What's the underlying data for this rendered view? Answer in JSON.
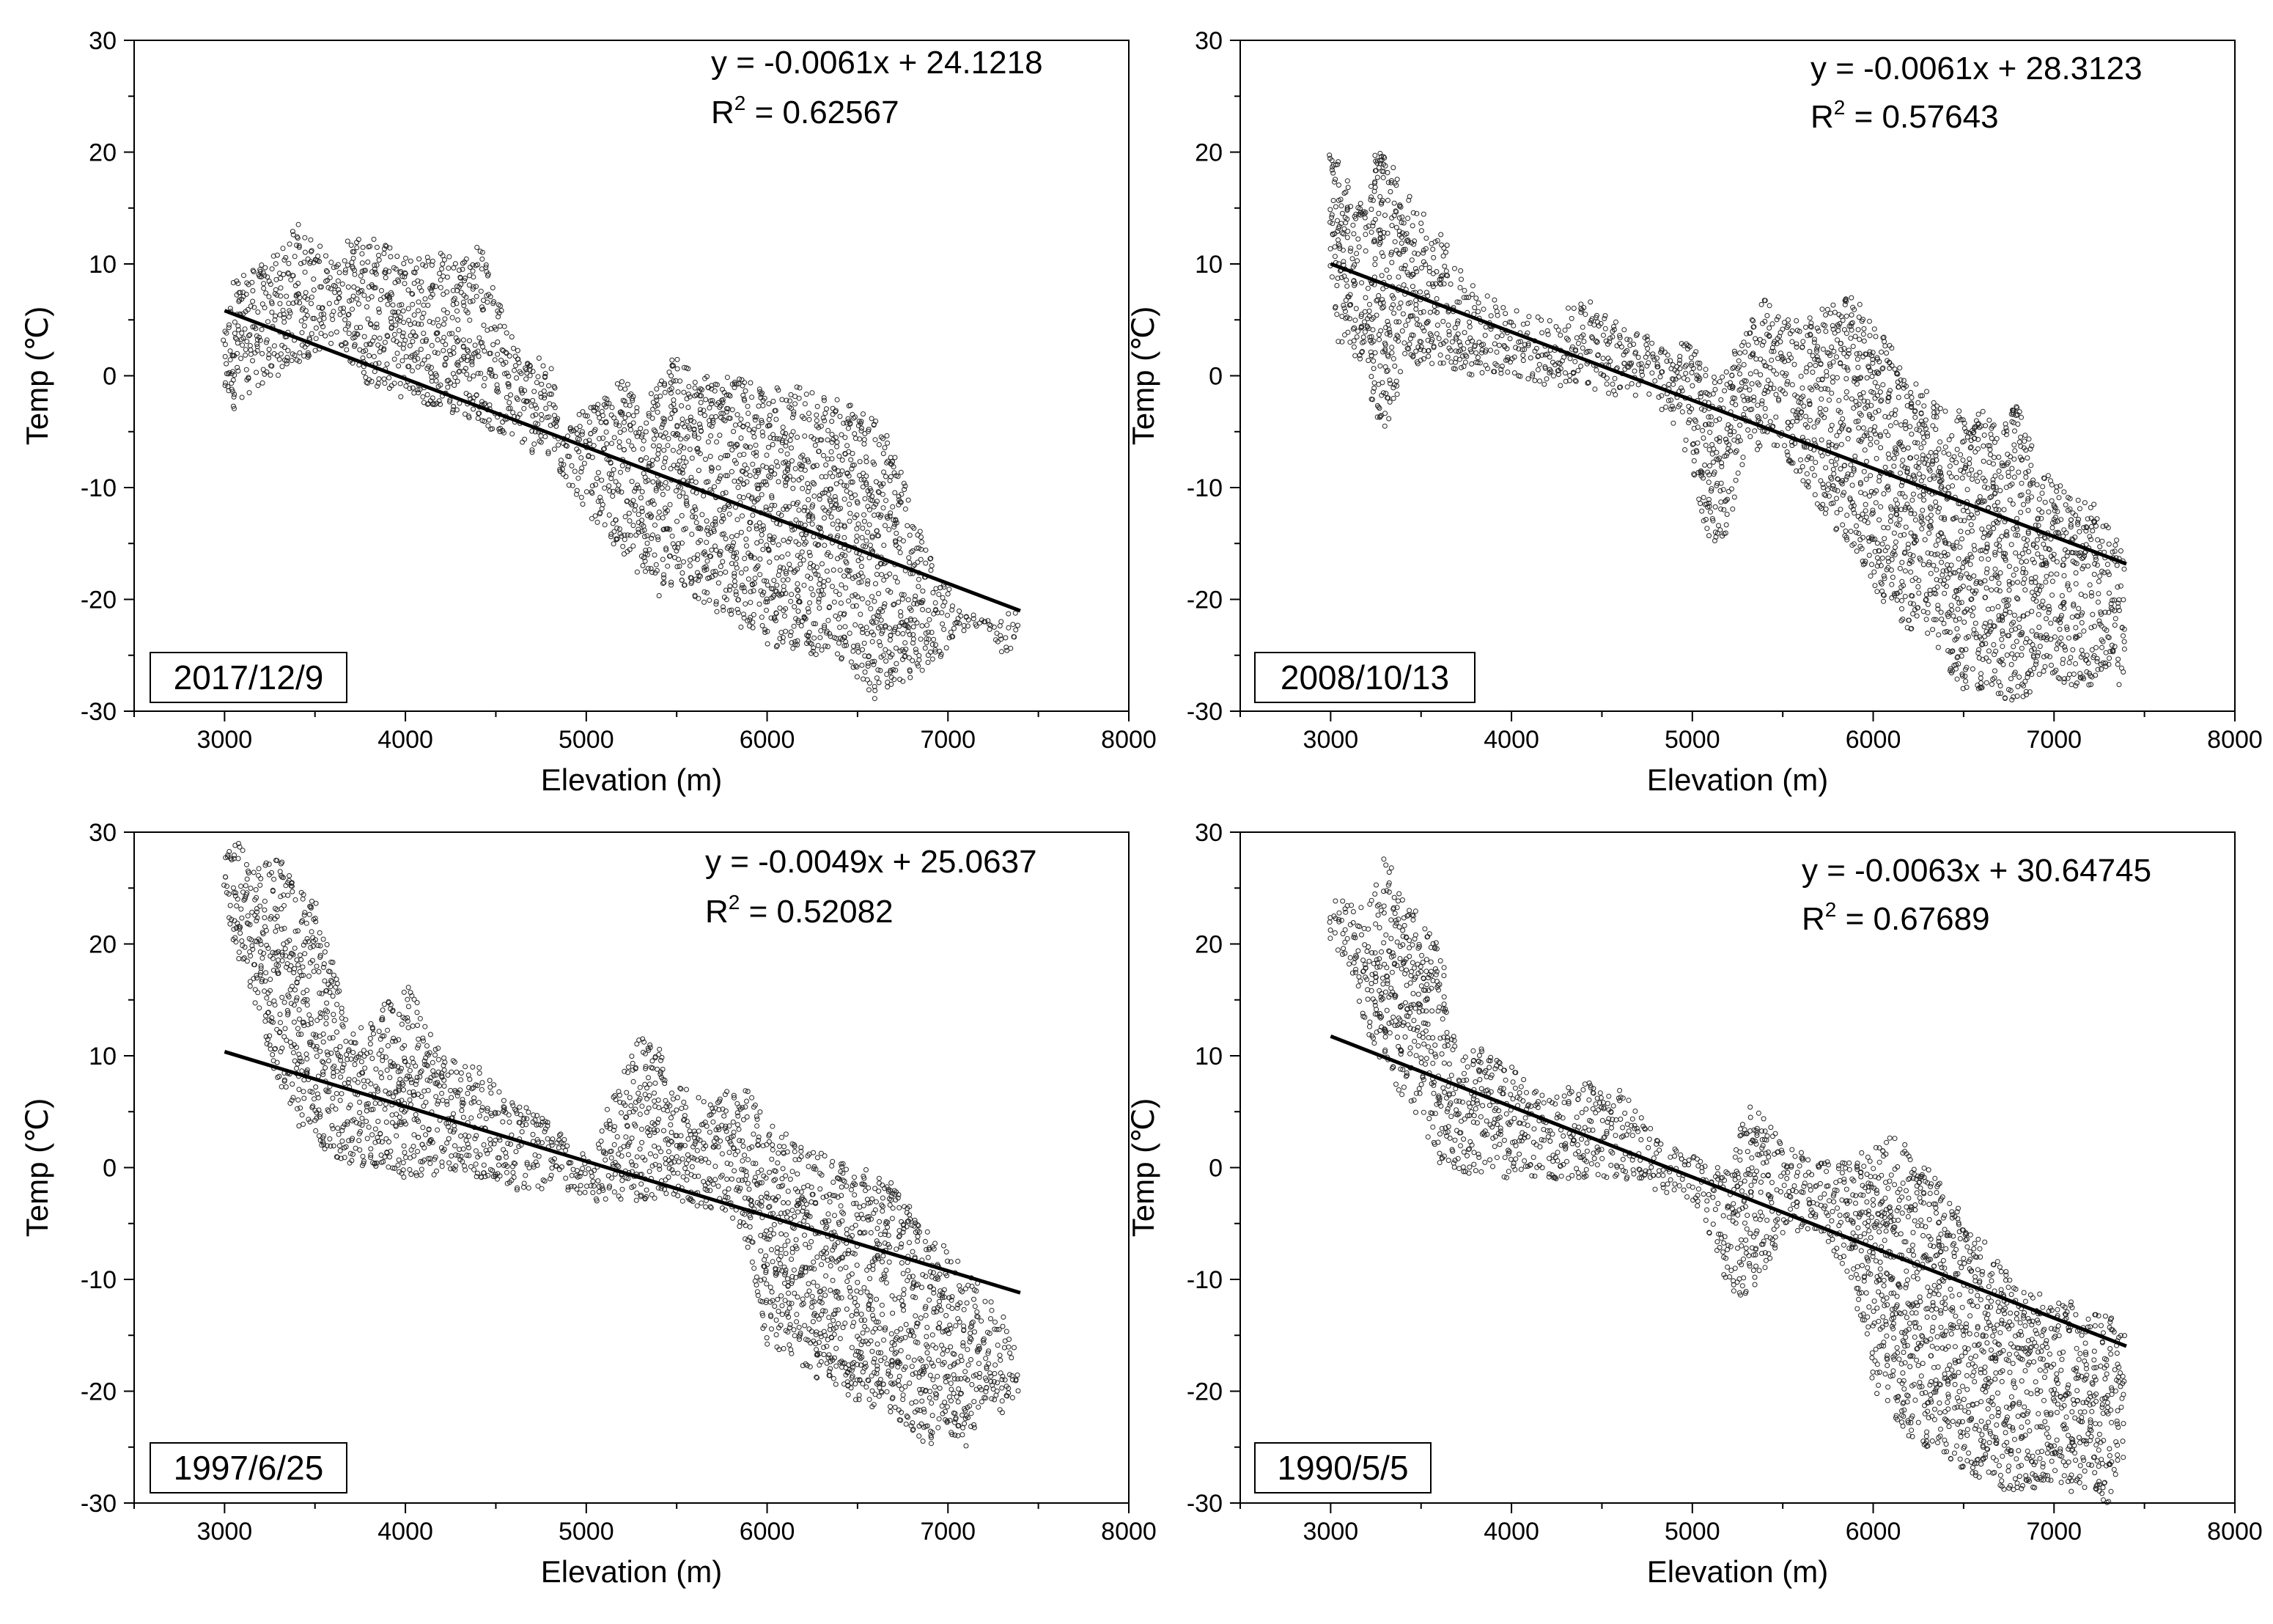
{
  "chart_data": [
    {
      "type": "scatter",
      "date": "2017/12/9",
      "xlabel": "Elevation (m)",
      "ylabel": "Temp (℃)",
      "xlim": [
        2500,
        8000
      ],
      "ylim": [
        -30,
        30
      ],
      "xticks": [
        3000,
        4000,
        5000,
        6000,
        7000,
        8000
      ],
      "yticks": [
        -30,
        -20,
        -10,
        0,
        10,
        20,
        30
      ],
      "equation": "y = -0.0061x + 24.1218",
      "r2_label": "R",
      "r2_exp": "2",
      "r2_value": " = 0.62567",
      "fit": {
        "slope": -0.0061,
        "intercept": 24.1218,
        "x_range": [
          3000,
          7400
        ]
      },
      "cloud": [
        [
          3000,
          -3,
          4
        ],
        [
          3050,
          -3,
          9
        ],
        [
          3100,
          -2,
          9
        ],
        [
          3200,
          -1,
          10
        ],
        [
          3300,
          0,
          11
        ],
        [
          3400,
          1,
          14
        ],
        [
          3500,
          2,
          12
        ],
        [
          3600,
          3,
          10
        ],
        [
          3700,
          1,
          13
        ],
        [
          3800,
          -1,
          13
        ],
        [
          4000,
          -2,
          11
        ],
        [
          4200,
          -3,
          11
        ],
        [
          4400,
          -4,
          12
        ],
        [
          4500,
          -5,
          8
        ],
        [
          4600,
          -6,
          3
        ],
        [
          4800,
          -8,
          1
        ],
        [
          4900,
          -10,
          -4
        ],
        [
          5000,
          -12,
          -3
        ],
        [
          5100,
          -14,
          -2
        ],
        [
          5200,
          -16,
          0
        ],
        [
          5300,
          -18,
          -3
        ],
        [
          5400,
          -20,
          0
        ],
        [
          5500,
          -18,
          2
        ],
        [
          5600,
          -20,
          0
        ],
        [
          5800,
          -22,
          0
        ],
        [
          6000,
          -24,
          -1
        ],
        [
          6200,
          -25,
          -1
        ],
        [
          6400,
          -25,
          -2
        ],
        [
          6500,
          -27,
          -3
        ],
        [
          6600,
          -29,
          -4
        ],
        [
          6700,
          -28,
          -6
        ],
        [
          6800,
          -27,
          -12
        ],
        [
          6900,
          -26,
          -16
        ],
        [
          7000,
          -25,
          -19
        ],
        [
          7100,
          -23,
          -21
        ],
        [
          7200,
          -22,
          -22
        ],
        [
          7300,
          -25,
          -21
        ],
        [
          7400,
          -24,
          -21
        ]
      ]
    },
    {
      "type": "scatter",
      "date": "2008/10/13",
      "xlabel": "Elevation (m)",
      "ylabel": "Temp (℃)",
      "xlim": [
        2500,
        8000
      ],
      "ylim": [
        -30,
        30
      ],
      "xticks": [
        3000,
        4000,
        5000,
        6000,
        7000,
        8000
      ],
      "yticks": [
        -30,
        -20,
        -10,
        0,
        10,
        20,
        30
      ],
      "equation": "y = -0.0061x + 28.3123",
      "r2_label": "R",
      "r2_exp": "2",
      "r2_value": " = 0.57643",
      "fit": {
        "slope": -0.0061,
        "intercept": 28.3123,
        "x_range": [
          3000,
          7400
        ]
      },
      "cloud": [
        [
          3000,
          8,
          20
        ],
        [
          3050,
          3,
          19
        ],
        [
          3100,
          2,
          17
        ],
        [
          3200,
          1,
          15
        ],
        [
          3250,
          -4,
          20
        ],
        [
          3300,
          -5,
          20
        ],
        [
          3400,
          0,
          17
        ],
        [
          3500,
          1,
          15
        ],
        [
          3600,
          1,
          13
        ],
        [
          3700,
          0,
          10
        ],
        [
          3800,
          0,
          8
        ],
        [
          4000,
          0,
          6
        ],
        [
          4200,
          -1,
          5
        ],
        [
          4400,
          -1,
          7
        ],
        [
          4600,
          -2,
          5
        ],
        [
          4800,
          -2,
          3
        ],
        [
          5000,
          -8,
          3
        ],
        [
          5050,
          -13,
          1
        ],
        [
          5100,
          -15,
          0
        ],
        [
          5200,
          -14,
          1
        ],
        [
          5300,
          -8,
          4
        ],
        [
          5400,
          -6,
          7
        ],
        [
          5500,
          -7,
          5
        ],
        [
          5600,
          -9,
          5
        ],
        [
          5700,
          -12,
          6
        ],
        [
          5800,
          -14,
          7
        ],
        [
          5900,
          -16,
          7
        ],
        [
          6000,
          -19,
          5
        ],
        [
          6100,
          -21,
          3
        ],
        [
          6200,
          -23,
          1
        ],
        [
          6300,
          -24,
          -1
        ],
        [
          6400,
          -26,
          -3
        ],
        [
          6500,
          -28,
          -3
        ],
        [
          6600,
          -28,
          -3
        ],
        [
          6700,
          -29,
          -4
        ],
        [
          6800,
          -29,
          -2
        ],
        [
          6900,
          -28,
          -7
        ],
        [
          7000,
          -27,
          -9
        ],
        [
          7100,
          -28,
          -10
        ],
        [
          7200,
          -28,
          -11
        ],
        [
          7300,
          -26,
          -13
        ],
        [
          7400,
          -29,
          -17
        ]
      ]
    },
    {
      "type": "scatter",
      "date": "1997/6/25",
      "xlabel": "Elevation (m)",
      "ylabel": "Temp (℃)",
      "xlim": [
        2500,
        8000
      ],
      "ylim": [
        -30,
        30
      ],
      "xticks": [
        3000,
        4000,
        5000,
        6000,
        7000,
        8000
      ],
      "yticks": [
        -30,
        -20,
        -10,
        0,
        10,
        20,
        30
      ],
      "equation": "y = -0.0049x + 25.0637",
      "r2_label": "R",
      "r2_exp": "2",
      "r2_value": " = 0.52082",
      "fit": {
        "slope": -0.0049,
        "intercept": 25.0637,
        "x_range": [
          3000,
          7400
        ]
      },
      "cloud": [
        [
          3000,
          24,
          28
        ],
        [
          3050,
          20,
          29
        ],
        [
          3100,
          18,
          29
        ],
        [
          3200,
          12,
          27
        ],
        [
          3300,
          8,
          28
        ],
        [
          3400,
          4,
          25
        ],
        [
          3500,
          2,
          24
        ],
        [
          3600,
          1,
          19
        ],
        [
          3700,
          0,
          12
        ],
        [
          3800,
          0,
          13
        ],
        [
          3900,
          0,
          15
        ],
        [
          4000,
          -1,
          17
        ],
        [
          4200,
          -1,
          10
        ],
        [
          4400,
          -1,
          9
        ],
        [
          4600,
          -2,
          6
        ],
        [
          4800,
          -2,
          4
        ],
        [
          5000,
          -3,
          1
        ],
        [
          5200,
          -3,
          8
        ],
        [
          5300,
          -3,
          12
        ],
        [
          5400,
          -3,
          11
        ],
        [
          5500,
          -3,
          8
        ],
        [
          5700,
          -4,
          6
        ],
        [
          5800,
          -5,
          7
        ],
        [
          5900,
          -8,
          7
        ],
        [
          6000,
          -16,
          4
        ],
        [
          6100,
          -17,
          3
        ],
        [
          6200,
          -18,
          2
        ],
        [
          6400,
          -20,
          1
        ],
        [
          6500,
          -21,
          0
        ],
        [
          6600,
          -22,
          0
        ],
        [
          6700,
          -22,
          -1
        ],
        [
          6800,
          -24,
          -4
        ],
        [
          6900,
          -25,
          -6
        ],
        [
          7000,
          -24,
          -7
        ],
        [
          7100,
          -25,
          -9
        ],
        [
          7200,
          -21,
          -11
        ],
        [
          7300,
          -22,
          -13
        ],
        [
          7400,
          -20,
          -16
        ]
      ]
    },
    {
      "type": "scatter",
      "date": "1990/5/5",
      "xlabel": "Elevation (m)",
      "ylabel": "Temp (℃)",
      "xlim": [
        2500,
        8000
      ],
      "ylim": [
        -30,
        30
      ],
      "xticks": [
        3000,
        4000,
        5000,
        6000,
        7000,
        8000
      ],
      "yticks": [
        -30,
        -20,
        -10,
        0,
        10,
        20,
        30
      ],
      "equation": "y = -0.0063x + 30.64745",
      "r2_label": "R",
      "r2_exp": "2",
      "r2_value": " = 0.67689",
      "fit": {
        "slope": -0.0063,
        "intercept": 30.64745,
        "x_range": [
          3000,
          7400
        ]
      },
      "cloud": [
        [
          3000,
          20,
          24
        ],
        [
          3100,
          18,
          24
        ],
        [
          3200,
          12,
          23
        ],
        [
          3300,
          9,
          28
        ],
        [
          3400,
          6,
          25
        ],
        [
          3500,
          4,
          22
        ],
        [
          3600,
          0,
          20
        ],
        [
          3700,
          0,
          10
        ],
        [
          3800,
          -1,
          11
        ],
        [
          4000,
          -1,
          9
        ],
        [
          4200,
          -1,
          6
        ],
        [
          4400,
          -1,
          8
        ],
        [
          4600,
          -1,
          7
        ],
        [
          4800,
          -2,
          3
        ],
        [
          5000,
          -3,
          1
        ],
        [
          5100,
          -6,
          0
        ],
        [
          5200,
          -11,
          0
        ],
        [
          5300,
          -12,
          6
        ],
        [
          5400,
          -9,
          5
        ],
        [
          5500,
          -6,
          2
        ],
        [
          5700,
          -6,
          1
        ],
        [
          5800,
          -8,
          1
        ],
        [
          5900,
          -11,
          2
        ],
        [
          6000,
          -21,
          2
        ],
        [
          6100,
          -22,
          3
        ],
        [
          6200,
          -24,
          2
        ],
        [
          6300,
          -25,
          0
        ],
        [
          6400,
          -26,
          -1
        ],
        [
          6500,
          -27,
          -5
        ],
        [
          6600,
          -28,
          -6
        ],
        [
          6700,
          -29,
          -8
        ],
        [
          6800,
          -29,
          -10
        ],
        [
          6900,
          -29,
          -11
        ],
        [
          7000,
          -28,
          -12
        ],
        [
          7100,
          -29,
          -12
        ],
        [
          7200,
          -29,
          -13
        ],
        [
          7300,
          -30,
          -13
        ],
        [
          7400,
          -25,
          -15
        ]
      ]
    }
  ]
}
